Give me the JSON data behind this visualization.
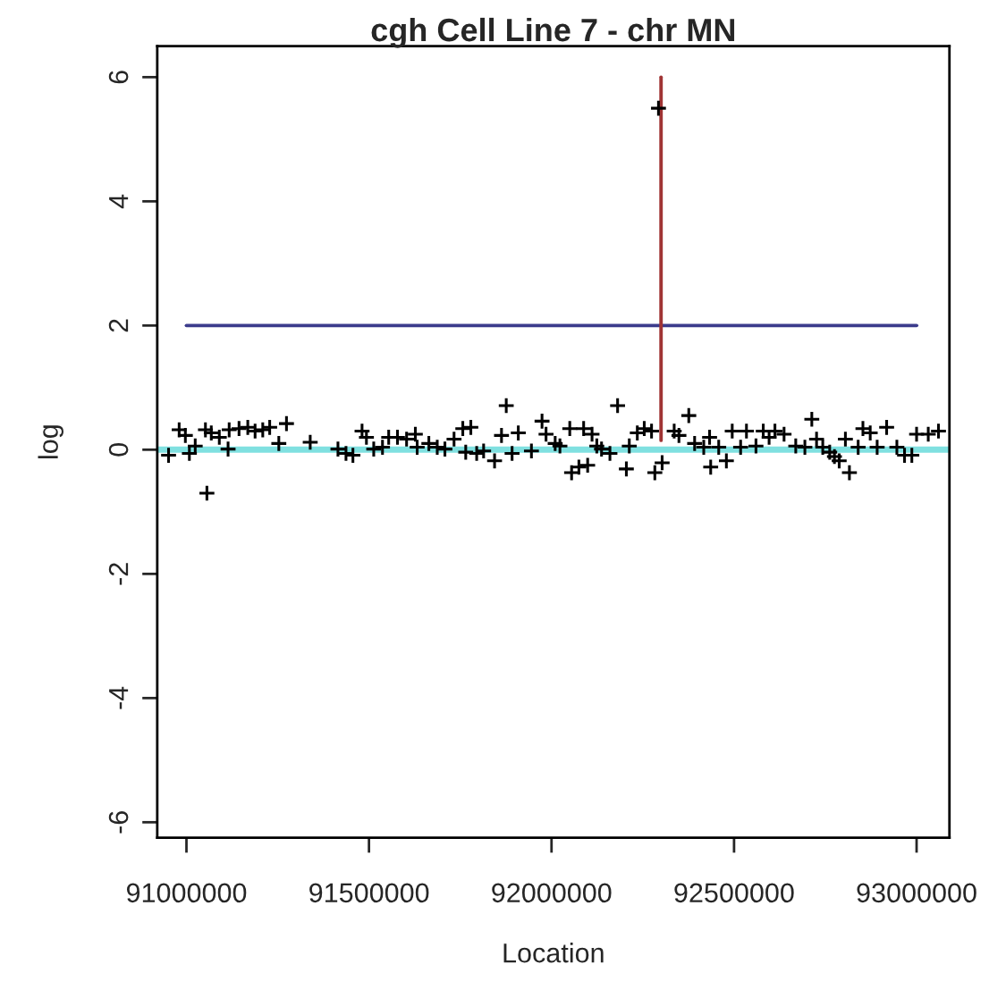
{
  "chart_data": {
    "type": "scatter",
    "title": "cgh Cell Line 7 - chr MN",
    "xlabel": "Location",
    "ylabel": "log",
    "xlim": [
      90920000,
      93090000
    ],
    "xticks": [
      91000000,
      91500000,
      92000000,
      92500000,
      93000000
    ],
    "ylim": [
      -6.25,
      6.5
    ],
    "yticks": [
      -6,
      -4,
      -2,
      0,
      2,
      4,
      6
    ],
    "marker": "cross",
    "grid": false,
    "legend": false,
    "ref_lines": [
      {
        "axis": "y",
        "value": 0,
        "color": "#80e0e0"
      }
    ],
    "series": [
      {
        "color": "#000000",
        "x": [
          90951000,
          90980000,
          90997000,
          91008000,
          91024000,
          91052000,
          91056000,
          91068000,
          91090000,
          91114000,
          91117000,
          91144000,
          91168000,
          91188000,
          91209000,
          91228000,
          91253000,
          91274000,
          91339000,
          91415000,
          91437000,
          91456000,
          91481000,
          91493000,
          91513000,
          91537000,
          91554000,
          91578000,
          91603000,
          91627000,
          91632000,
          91664000,
          91687000,
          91708000,
          91733000,
          91757000,
          91765000,
          91779000,
          91795000,
          91814000,
          91844000,
          91863000,
          91876000,
          91892000,
          91909000,
          91945000,
          91974000,
          91985000,
          92010000,
          92023000,
          92050000,
          92055000,
          92075000,
          92088000,
          92099000,
          92111000,
          92124000,
          92137000,
          92160000,
          92181000,
          92205000,
          92213000,
          92235000,
          92254000,
          92274000,
          92283000,
          92293000,
          92303000,
          92336000,
          92349000,
          92376000,
          92392000,
          92417000,
          92433000,
          92436000,
          92458000,
          92479000,
          92495000,
          92518000,
          92534000,
          92560000,
          92580000,
          92596000,
          92612000,
          92637000,
          92669000,
          92694000,
          92713000,
          92726000,
          92743000,
          92762000,
          92775000,
          92788000,
          92805000,
          92816000,
          92840000,
          92853000,
          92873000,
          92892000,
          92918000,
          92946000,
          92967000,
          92987000,
          93000000,
          93032000,
          93060000
        ],
        "values": [
          -0.09,
          0.32,
          0.23,
          -0.06,
          0.06,
          0.32,
          -0.7,
          0.27,
          0.2,
          0.01,
          0.32,
          0.34,
          0.36,
          0.3,
          0.32,
          0.36,
          0.1,
          0.42,
          0.12,
          0.01,
          -0.06,
          -0.09,
          0.3,
          0.2,
          0.01,
          0.04,
          0.2,
          0.2,
          0.17,
          0.25,
          0.04,
          0.1,
          0.04,
          0.01,
          0.17,
          0.34,
          -0.04,
          0.36,
          -0.06,
          -0.02,
          -0.18,
          0.23,
          0.71,
          -0.06,
          0.27,
          -0.02,
          0.46,
          0.25,
          0.1,
          0.06,
          0.34,
          -0.37,
          -0.28,
          0.34,
          -0.25,
          0.25,
          0.06,
          0.01,
          -0.06,
          0.71,
          -0.31,
          0.06,
          0.27,
          0.34,
          0.3,
          -0.37,
          5.5,
          -0.21,
          0.3,
          0.23,
          0.55,
          0.1,
          0.04,
          0.2,
          -0.28,
          0.04,
          -0.18,
          0.3,
          0.04,
          0.3,
          0.06,
          0.3,
          0.2,
          0.3,
          0.25,
          0.06,
          0.04,
          0.49,
          0.17,
          0.04,
          -0.04,
          -0.11,
          -0.18,
          0.17,
          -0.37,
          0.04,
          0.34,
          0.27,
          0.04,
          0.36,
          0.04,
          -0.09,
          -0.09,
          0.25,
          0.25,
          0.3
        ]
      },
      {
        "type": "line",
        "marker": "none",
        "color": "#3c3c8c",
        "x": [
          91000000,
          93000000
        ],
        "values": [
          2,
          2
        ]
      },
      {
        "type": "line",
        "marker": "none",
        "color": "#a03434",
        "x": [
          92300000,
          92300000
        ],
        "values": [
          0.15,
          6
        ]
      }
    ]
  }
}
